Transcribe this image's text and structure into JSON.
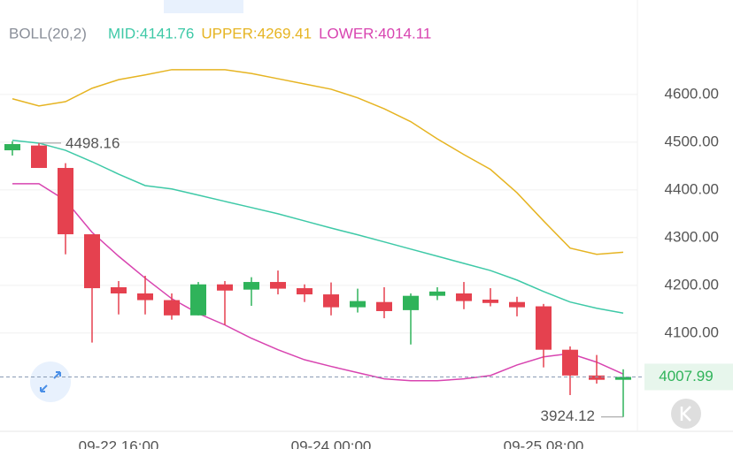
{
  "chart_data": {
    "type": "candlestick",
    "indicator": "BOLL(20,2)",
    "categories": [
      null,
      null,
      null,
      null,
      "09-22 16:00",
      null,
      null,
      null,
      null,
      null,
      null,
      null,
      "09-24 00:00",
      null,
      null,
      null,
      null,
      null,
      null,
      null,
      "09-25 08:00",
      null,
      null,
      null
    ],
    "open": [
      4483,
      4493,
      4446,
      4307,
      4196,
      4183,
      4169,
      4137,
      4202,
      4191,
      4207,
      4194,
      4181,
      4154,
      4165,
      4148,
      4178,
      4183,
      4170,
      4165,
      4156,
      4065,
      4011,
      4002
    ],
    "high": [
      4502,
      4498.16,
      4456,
      4307,
      4209,
      4220,
      4183,
      4207,
      4209,
      4217,
      4231,
      4202,
      4206,
      4193,
      4196,
      4183,
      4196,
      4207,
      4194,
      4176,
      4161,
      4072,
      4054,
      4024
    ],
    "low": [
      4472,
      4446,
      4265,
      4080,
      4139,
      4139,
      4128,
      4137,
      4117,
      4157,
      4181,
      4165,
      4137,
      4143,
      4131,
      4076,
      4169,
      4150,
      4156,
      4135,
      4028,
      3970,
      3994,
      3924.12
    ],
    "close": [
      4496,
      4446,
      4307,
      4194,
      4183,
      4169,
      4137,
      4202,
      4189,
      4207,
      4193,
      4181,
      4154,
      4167,
      4146,
      4178,
      4187,
      4167,
      4163,
      4154,
      4065,
      4011,
      4002,
      4007.99
    ],
    "up_color": "#2fb35a",
    "down_color": "#e5414f",
    "series": [
      {
        "name": "MID",
        "value_label": "MID:4141.76",
        "color": "#3ec9a7",
        "values": [
          4504,
          4498,
          4483,
          4459,
          4433,
          4409,
          4402,
          4389,
          4376,
          4363,
          4350,
          4335,
          4320,
          4306,
          4291,
          4276,
          4261,
          4246,
          4231,
          4211,
          4187,
          4165,
          4152,
          4141.76
        ]
      },
      {
        "name": "UPPER",
        "value_label": "UPPER:4269.41",
        "color": "#e6b422",
        "values": [
          4591,
          4576,
          4585,
          4613,
          4631,
          4641,
          4652,
          4652,
          4652,
          4644,
          4633,
          4622,
          4611,
          4593,
          4570,
          4543,
          4507,
          4474,
          4443,
          4394,
          4335,
          4278,
          4265,
          4269.41
        ]
      },
      {
        "name": "LOWER",
        "value_label": "LOWER:4014.11",
        "color": "#d844b0",
        "values": [
          4413,
          4413,
          4378,
          4311,
          4261,
          4215,
          4172,
          4141,
          4117,
          4089,
          4065,
          4044,
          4030,
          4017,
          4004,
          4000,
          4000,
          4004,
          4011,
          4033,
          4050,
          4057,
          4039,
          4014.11
        ]
      }
    ],
    "ylim": [
      3894,
      4798
    ],
    "yticks": [
      {
        "value": 4100,
        "label": "4100.00"
      },
      {
        "value": 4200,
        "label": "4200.00"
      },
      {
        "value": 4300,
        "label": "4300.00"
      },
      {
        "value": 4400,
        "label": "4400.00"
      },
      {
        "value": 4500,
        "label": "4500.00"
      },
      {
        "value": 4600,
        "label": "4600.00"
      }
    ],
    "grid": true
  }
}
